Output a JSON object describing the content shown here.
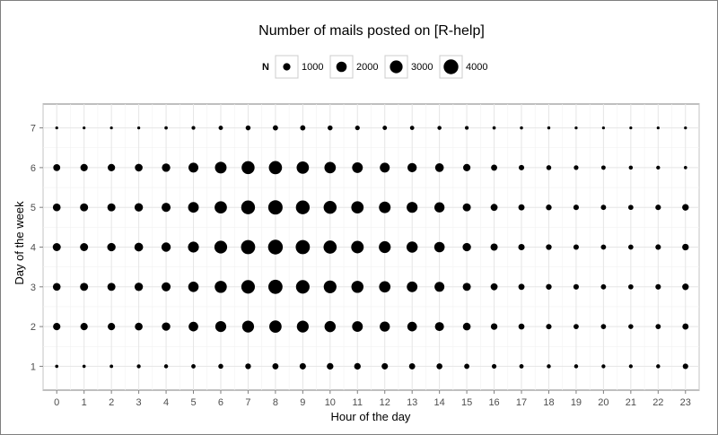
{
  "chart_data": {
    "type": "scatter",
    "title": "Number of mails posted on [R-help]",
    "xlabel": "Hour of the day",
    "ylabel": "Day of the week",
    "x_ticks": [
      "0",
      "1",
      "2",
      "3",
      "4",
      "5",
      "6",
      "7",
      "8",
      "9",
      "10",
      "11",
      "12",
      "13",
      "14",
      "15",
      "16",
      "17",
      "18",
      "19",
      "20",
      "21",
      "22",
      "23"
    ],
    "y_ticks": [
      "1",
      "2",
      "3",
      "4",
      "5",
      "6",
      "7"
    ],
    "xlim": [
      -0.5,
      23.5
    ],
    "ylim": [
      0.4,
      7.6
    ],
    "grid": true,
    "legend": {
      "title": "N",
      "placement": "top",
      "entries": [
        {
          "label": "1000",
          "value": 1000
        },
        {
          "label": "2000",
          "value": 2000
        },
        {
          "label": "3000",
          "value": 3000
        },
        {
          "label": "4000",
          "value": 4000
        }
      ]
    },
    "hours": [
      0,
      1,
      2,
      3,
      4,
      5,
      6,
      7,
      8,
      9,
      10,
      11,
      12,
      13,
      14,
      15,
      16,
      17,
      18,
      19,
      20,
      21,
      22,
      23
    ],
    "series": [
      {
        "day": 1,
        "values": [
          200,
          200,
          220,
          280,
          300,
          350,
          450,
          600,
          700,
          750,
          800,
          800,
          750,
          700,
          650,
          500,
          400,
          350,
          300,
          300,
          280,
          270,
          300,
          560
        ]
      },
      {
        "day": 2,
        "values": [
          1000,
          1000,
          1000,
          1100,
          1300,
          1700,
          2200,
          2600,
          2800,
          2600,
          2300,
          2100,
          1900,
          1700,
          1500,
          1100,
          800,
          650,
          550,
          500,
          480,
          450,
          500,
          700
        ]
      },
      {
        "day": 3,
        "values": [
          1100,
          1200,
          1200,
          1300,
          1500,
          2000,
          2700,
          3400,
          3700,
          3400,
          3000,
          2700,
          2400,
          2100,
          1800,
          1200,
          900,
          700,
          600,
          550,
          500,
          480,
          550,
          800
        ]
      },
      {
        "day": 4,
        "values": [
          1200,
          1200,
          1300,
          1400,
          1600,
          2200,
          3000,
          3700,
          4000,
          3700,
          3200,
          2900,
          2600,
          2300,
          2000,
          1300,
          950,
          750,
          600,
          550,
          500,
          480,
          560,
          800
        ]
      },
      {
        "day": 5,
        "values": [
          1100,
          1200,
          1200,
          1300,
          1500,
          2100,
          2800,
          3500,
          3800,
          3500,
          3100,
          2800,
          2500,
          2200,
          1900,
          1200,
          900,
          700,
          600,
          550,
          500,
          480,
          560,
          800
        ]
      },
      {
        "day": 6,
        "values": [
          900,
          1000,
          1000,
          1100,
          1300,
          1800,
          2500,
          3100,
          3200,
          2800,
          2400,
          2100,
          1800,
          1600,
          1400,
          1000,
          700,
          550,
          450,
          400,
          350,
          300,
          280,
          200
        ]
      },
      {
        "day": 7,
        "values": [
          150,
          150,
          150,
          160,
          200,
          250,
          350,
          450,
          500,
          500,
          450,
          400,
          350,
          330,
          300,
          250,
          200,
          180,
          170,
          160,
          150,
          150,
          150,
          160
        ]
      }
    ]
  }
}
